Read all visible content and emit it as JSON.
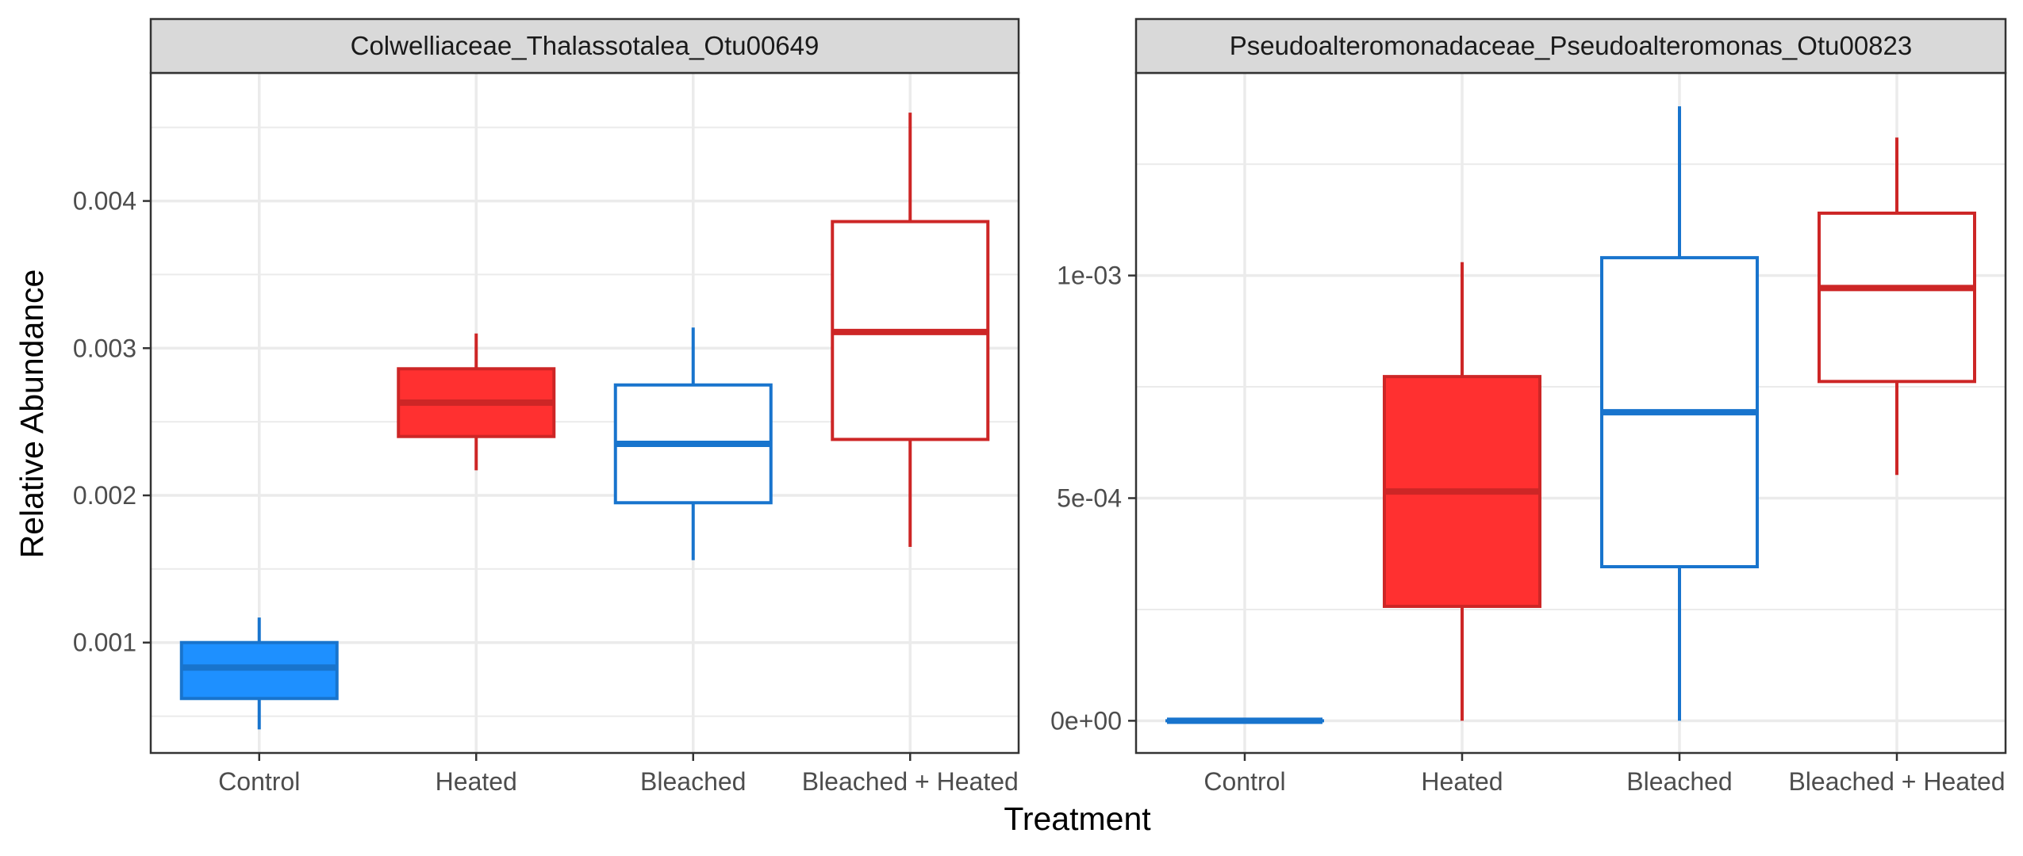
{
  "chart_data": {
    "type": "box",
    "xlabel": "Treatment",
    "ylabel": "Relative Abundance",
    "categories": [
      "Control",
      "Heated",
      "Bleached",
      "Bleached + Heated"
    ],
    "colors": {
      "blue_fill": "#1E90FF",
      "blue_line": "#1874CD",
      "red_fill": "#FF3030",
      "red_line": "#CD2626",
      "strip_bg": "#D9D9D9",
      "grid": "#EBEBEB"
    },
    "panels": [
      {
        "title": "Colwelliaceae_Thalassotalea_Otu00649",
        "ylim": [
          0.00025,
          0.00487
        ],
        "ticks": [
          0.001,
          0.002,
          0.003,
          0.004
        ],
        "tick_labels": [
          "0.001",
          "0.002",
          "0.003",
          "0.004"
        ],
        "boxes": [
          {
            "category": "Control",
            "min": 0.00041,
            "q1": 0.00062,
            "median": 0.00083,
            "q3": 0.001,
            "max": 0.00117,
            "style": "filled-blue"
          },
          {
            "category": "Heated",
            "min": 0.00217,
            "q1": 0.0024,
            "median": 0.00263,
            "q3": 0.00286,
            "max": 0.0031,
            "style": "filled-red"
          },
          {
            "category": "Bleached",
            "min": 0.00156,
            "q1": 0.00195,
            "median": 0.00235,
            "q3": 0.00275,
            "max": 0.00314,
            "style": "outline-blue"
          },
          {
            "category": "Bleached + Heated",
            "min": 0.00165,
            "q1": 0.00238,
            "median": 0.00311,
            "q3": 0.00386,
            "max": 0.0046,
            "style": "outline-red"
          }
        ]
      },
      {
        "title": "Pseudoalteromonadaceae_Pseudoalteromonas_Otu00823",
        "ylim": [
          -7.23e-05,
          0.001455
        ],
        "ticks": [
          0,
          0.0005,
          0.001
        ],
        "tick_labels": [
          "0e+00",
          "5e-04",
          "1e-03"
        ],
        "boxes": [
          {
            "category": "Control",
            "min": 0,
            "q1": 0,
            "median": 0,
            "q3": 0,
            "max": 0,
            "style": "outline-blue"
          },
          {
            "category": "Heated",
            "min": 0,
            "q1": 0.000257,
            "median": 0.000515,
            "q3": 0.000773,
            "max": 0.00103,
            "style": "filled-red"
          },
          {
            "category": "Bleached",
            "min": 0,
            "q1": 0.000346,
            "median": 0.000693,
            "q3": 0.00104,
            "max": 0.00138,
            "style": "outline-blue"
          },
          {
            "category": "Bleached + Heated",
            "min": 0.000552,
            "q1": 0.000762,
            "median": 0.000972,
            "q3": 0.00114,
            "max": 0.00131,
            "style": "outline-red"
          }
        ]
      }
    ]
  }
}
